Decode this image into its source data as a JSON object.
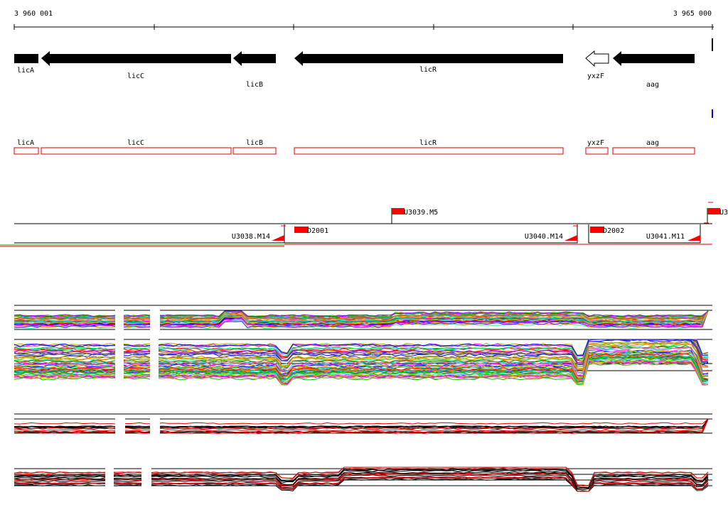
{
  "ruler": {
    "start_label": "3 960 001",
    "end_label": "3 965 000"
  },
  "genes": [
    {
      "name": "licA",
      "strand": "-",
      "filled": true
    },
    {
      "name": "licC",
      "strand": "-",
      "filled": true
    },
    {
      "name": "licB",
      "strand": "-",
      "filled": true
    },
    {
      "name": "licR",
      "strand": "-",
      "filled": true
    },
    {
      "name": "yxzF",
      "strand": "-",
      "filled": false
    },
    {
      "name": "aag",
      "strand": "-",
      "filled": true
    }
  ],
  "annotation_boxes": [
    {
      "name": "licA"
    },
    {
      "name": "licC"
    },
    {
      "name": "licB"
    },
    {
      "name": "licR"
    },
    {
      "name": "yxzF"
    },
    {
      "name": "aag"
    }
  ],
  "transcription_units": [
    {
      "label": "U3038.M14"
    },
    {
      "label": "U3039.M5"
    },
    {
      "label": "U3040.M14"
    },
    {
      "label": "U3041.M11"
    },
    {
      "label": "U3"
    }
  ],
  "downshifts": [
    {
      "label": "D2001"
    },
    {
      "label": "D2002"
    }
  ],
  "colors": {
    "gene_fill": "#000000",
    "annotation_outline": "#e00000",
    "tu_flag": "#ff0000",
    "blue_mark": "#0000cc",
    "green_line": "#00a000"
  }
}
